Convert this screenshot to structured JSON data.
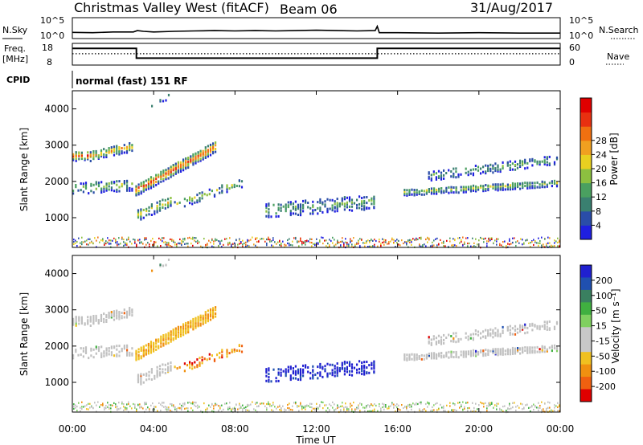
{
  "header": {
    "station": "Christmas Valley West (fitACF)",
    "beam": "Beam 06",
    "date": "31/Aug/2017"
  },
  "left_labels": {
    "nsky": "N.Sky",
    "freq": "Freq.",
    "freq_unit": "[MHz]",
    "cpid": "CPID"
  },
  "right_labels": {
    "nsearch": "N.Search",
    "nave": "Nave"
  },
  "cpid_text": "normal (fast) 151 RF",
  "time_ticks": [
    "00:00",
    "04:00",
    "08:00",
    "12:00",
    "16:00",
    "20:00",
    "00:00"
  ],
  "xlabel": "Time UT",
  "colors": {
    "power": [
      "#1f1fe0",
      "#2a4da8",
      "#3a8070",
      "#4aa060",
      "#8cc040",
      "#e8d020",
      "#f0a020",
      "#f07010",
      "#e83010",
      "#e00000"
    ],
    "velocity": [
      "#2020d0",
      "#2050b0",
      "#3a8060",
      "#40b040",
      "#80d060",
      "#c8c8c8",
      "#c8c8c8",
      "#f0c020",
      "#f09010",
      "#f06010",
      "#e00000"
    ],
    "ground_scatter": "#c0c0c0"
  },
  "chart_data": [
    {
      "type": "line",
      "name": "noise-panel",
      "ylabel_left": "N.Sky",
      "ylabel_right": "N.Search",
      "left_ticks": [
        "10^5",
        "10^0"
      ],
      "right_ticks": [
        "10^5",
        "10^0"
      ],
      "x_hours": [
        0,
        1,
        2,
        3,
        3.2,
        3.5,
        4,
        5,
        6,
        7,
        8,
        9,
        10,
        11,
        12,
        13,
        14,
        14.9,
        15,
        15.1,
        16,
        18,
        20,
        22,
        24
      ],
      "n_sky": [
        1.3,
        1.2,
        1.4,
        1.4,
        1.8,
        1.6,
        1.4,
        1.6,
        1.7,
        1.8,
        1.7,
        1.8,
        1.7,
        1.8,
        1.9,
        1.8,
        1.7,
        1.8,
        3.0,
        1.2,
        1.2,
        1.1,
        1.2,
        1.1,
        1.1
      ]
    },
    {
      "type": "line",
      "name": "frequency-panel",
      "ylabel_left": "Freq. [MHz]",
      "ylabel_right": "Nave",
      "left_ticks": [
        "18",
        "8"
      ],
      "right_ticks": [
        "60",
        "0"
      ],
      "x_hours": [
        0,
        3.15,
        3.15,
        15,
        15,
        24
      ],
      "freq": [
        16.5,
        16.5,
        11.0,
        11.0,
        16.5,
        16.5
      ],
      "nave_level": 33
    },
    {
      "type": "heatmap",
      "name": "power",
      "ylabel": "Slant Range [km]",
      "yticks": [
        1000,
        2000,
        3000,
        4000
      ],
      "ylim": [
        180,
        4500
      ],
      "xlim": [
        0,
        24
      ],
      "colorbar_label": "Power [dB]",
      "colorbar_ticks": [
        4,
        8,
        12,
        16,
        20,
        24,
        28
      ],
      "colorbar_range": [
        0,
        32
      ]
    },
    {
      "type": "heatmap",
      "name": "velocity",
      "ylabel": "Slant Range [km]",
      "yticks": [
        1000,
        2000,
        3000,
        4000
      ],
      "ylim": [
        180,
        4500
      ],
      "xlim": [
        0,
        24
      ],
      "colorbar_label": "Velocity [m s⁻¹]",
      "colorbar_ticks": [
        200,
        100,
        50,
        15,
        -15,
        -50,
        -100,
        -200
      ]
    }
  ]
}
